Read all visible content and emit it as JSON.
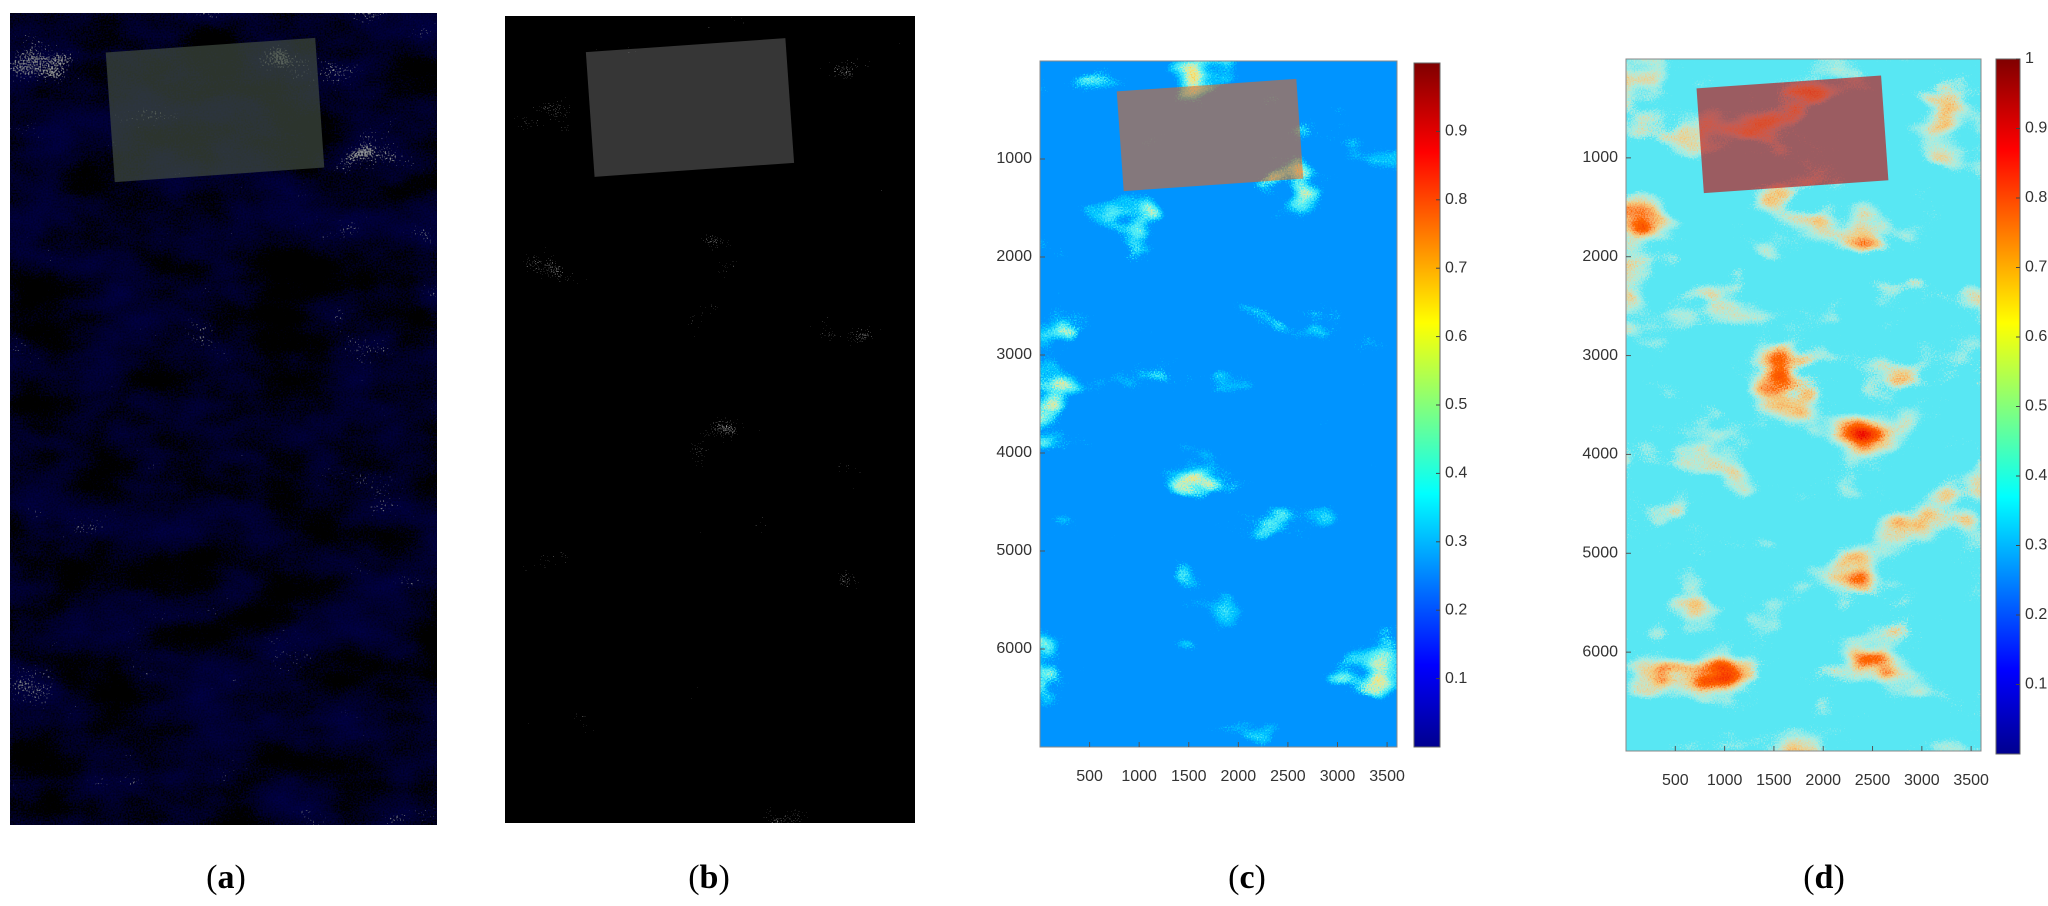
{
  "panels": [
    {
      "label": [
        "(",
        "a",
        ")"
      ]
    },
    {
      "label": [
        "(",
        "b",
        ")"
      ]
    },
    {
      "label": [
        "(",
        "c",
        ")"
      ],
      "xlim": [
        0,
        3600
      ],
      "ylim": [
        0,
        7000
      ],
      "xticks": [
        500,
        1000,
        1500,
        2000,
        2500,
        3000,
        3500
      ],
      "yticks": [
        1000,
        2000,
        3000,
        4000,
        5000,
        6000
      ],
      "colorbar_lim": [
        0,
        1
      ],
      "colorbar_ticks": [
        0.1,
        0.2,
        0.3,
        0.4,
        0.5,
        0.6,
        0.7,
        0.8,
        0.9
      ]
    },
    {
      "label": [
        "(",
        "d",
        ")"
      ],
      "xlim": [
        0,
        3600
      ],
      "ylim": [
        0,
        7000
      ],
      "xticks": [
        500,
        1000,
        1500,
        2000,
        2500,
        3000,
        3500
      ],
      "yticks": [
        1000,
        2000,
        3000,
        4000,
        5000,
        6000
      ],
      "colorbar_lim": [
        0,
        1
      ],
      "colorbar_ticks": [
        0.1,
        0.2,
        0.3,
        0.4,
        0.5,
        0.6,
        0.7,
        0.8,
        0.9,
        1
      ]
    }
  ]
}
